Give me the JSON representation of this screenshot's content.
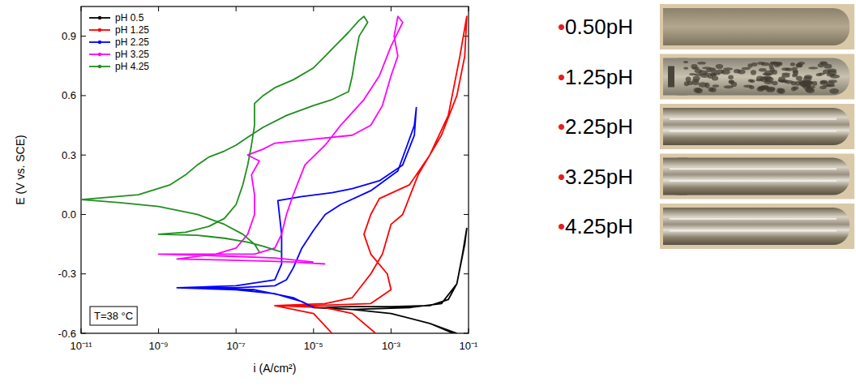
{
  "chart_data": {
    "type": "line",
    "xlabel": "i (A/cm²)",
    "ylabel": "E (V vs. SCE)",
    "log": "x",
    "legend": "upper left",
    "xlim": [
      1e-11,
      0.1
    ],
    "ylim": [
      -0.6,
      1.05
    ],
    "xticks": [
      {
        "value": 1e-11,
        "label": "10⁻¹¹"
      },
      {
        "value": 1e-09,
        "label": "10⁻⁹"
      },
      {
        "value": 1e-07,
        "label": "10⁻⁷"
      },
      {
        "value": 1e-05,
        "label": "10⁻⁵"
      },
      {
        "value": 0.001,
        "label": "10⁻³"
      },
      {
        "value": 0.1,
        "label": "10⁻¹"
      }
    ],
    "yticks": [
      -0.6,
      -0.3,
      {
        "value": 0,
        "label": "0.0"
      },
      0.3,
      0.6,
      0.9
    ],
    "annotations": [
      "T=38 °C"
    ],
    "series": [
      {
        "name": "pH 0.5",
        "color": "#000000",
        "line_style": "solid",
        "x": [
          0.04,
          0.01,
          0.001,
          0.0001,
          1e-05,
          0.0001,
          0.001,
          0.01,
          0.03,
          0.05,
          0.07,
          0.09,
          0.08,
          0.05,
          0.02,
          0.003,
          0.0001,
          0.001,
          0.01,
          0.05
        ],
        "values": [
          -0.6,
          -0.55,
          -0.5,
          -0.48,
          -0.47,
          -0.465,
          -0.465,
          -0.46,
          -0.43,
          -0.35,
          -0.2,
          -0.07,
          -0.15,
          -0.35,
          -0.45,
          -0.47,
          -0.48,
          -0.5,
          -0.55,
          -0.6
        ]
      },
      {
        "name": "pH 1.25",
        "color": "#ff0000",
        "line_style": "solid",
        "x": [
          0.0004,
          0.0001,
          2e-05,
          1e-06,
          2e-05,
          0.0001,
          0.0003,
          0.0006,
          0.001,
          0.002,
          0.005,
          0.02,
          0.05,
          0.08,
          0.09,
          0.06,
          0.03,
          0.01,
          0.003,
          0.0005,
          0.0003,
          0.0002,
          0.0003,
          0.0008,
          0.001,
          0.0003,
          1e-05,
          1e-06,
          1e-05,
          3e-05
        ],
        "values": [
          -0.6,
          -0.5,
          -0.47,
          -0.46,
          -0.45,
          -0.42,
          -0.3,
          -0.2,
          -0.05,
          0.0,
          0.2,
          0.4,
          0.6,
          0.8,
          1.0,
          0.8,
          0.5,
          0.3,
          0.15,
          0.08,
          0.0,
          -0.1,
          -0.2,
          -0.3,
          -0.38,
          -0.45,
          -0.46,
          -0.46,
          -0.5,
          -0.6
        ]
      },
      {
        "name": "pH 2.25",
        "color": "#0000ff",
        "line_style": "solid",
        "x": [
          1e-05,
          3e-06,
          3e-07,
          3e-09,
          1e-07,
          1e-06,
          1.5e-06,
          1.5e-06,
          1.2e-06,
          5e-06,
          3e-05,
          0.0001,
          0.0005,
          0.002,
          0.004,
          0.0045,
          0.004,
          0.0015,
          0.0003,
          5e-05,
          2e-05,
          1e-05,
          5e-06,
          3e-06,
          2e-06,
          1e-06,
          1e-07,
          3e-09,
          1e-07,
          1e-06,
          5e-06,
          1e-05
        ],
        "values": [
          -0.47,
          -0.42,
          -0.38,
          -0.37,
          -0.36,
          -0.33,
          -0.25,
          -0.1,
          0.07,
          0.09,
          0.11,
          0.13,
          0.17,
          0.25,
          0.4,
          0.54,
          0.45,
          0.22,
          0.12,
          0.05,
          0.0,
          -0.08,
          -0.17,
          -0.27,
          -0.33,
          -0.36,
          -0.37,
          -0.37,
          -0.38,
          -0.4,
          -0.44,
          -0.47
        ]
      },
      {
        "name": "pH 3.25",
        "color": "#ff00ff",
        "line_style": "solid",
        "x": [
          2e-05,
          3e-06,
          5e-07,
          5e-08,
          3e-09,
          3e-08,
          1e-07,
          2e-07,
          3e-07,
          3e-07,
          2.5e-07,
          4e-07,
          2e-07,
          5e-07,
          1e-06,
          1e-05,
          0.0001,
          0.0003,
          0.0006,
          0.001,
          0.0015,
          0.0012,
          0.0015,
          0.002,
          0.001,
          0.0005,
          0.0002,
          5e-05,
          2e-05,
          6e-06,
          3e-06,
          2e-06,
          1.5e-06,
          1e-06,
          3e-07,
          1e-08,
          1e-09,
          5e-08,
          1e-06,
          1e-05
        ],
        "values": [
          -0.25,
          -0.24,
          -0.235,
          -0.23,
          -0.225,
          -0.2,
          -0.17,
          -0.1,
          0.0,
          0.1,
          0.2,
          0.27,
          0.3,
          0.33,
          0.36,
          0.38,
          0.4,
          0.45,
          0.55,
          0.7,
          0.8,
          0.9,
          1.0,
          0.97,
          0.85,
          0.7,
          0.58,
          0.45,
          0.35,
          0.25,
          0.1,
          0.0,
          -0.1,
          -0.17,
          -0.2,
          -0.2,
          -0.2,
          -0.21,
          -0.22,
          -0.24
        ]
      },
      {
        "name": "pH 4.25",
        "color": "#1f8f1f",
        "line_style": "solid",
        "x": [
          1.5e-06,
          5e-07,
          2e-07,
          5e-08,
          1e-08,
          1e-09,
          5e-09,
          2e-08,
          5e-08,
          1e-07,
          1.5e-07,
          2e-07,
          2.5e-07,
          3e-07,
          3e-07,
          5e-07,
          1e-06,
          3e-06,
          1e-05,
          2e-05,
          4e-05,
          8e-05,
          0.00015,
          0.0002,
          0.00025,
          0.00015,
          0.00012,
          0.0001,
          8e-05,
          3e-05,
          1e-05,
          2e-06,
          5e-07,
          2e-07,
          1e-07,
          5e-08,
          2e-08,
          1e-08,
          5e-09,
          2e-09,
          3e-10,
          1e-11,
          1e-10,
          1e-09,
          1e-08,
          5e-08,
          1.5e-07,
          3e-07,
          4e-07
        ],
        "values": [
          -0.19,
          -0.16,
          -0.14,
          -0.12,
          -0.105,
          -0.1,
          -0.09,
          -0.06,
          -0.02,
          0.05,
          0.15,
          0.25,
          0.35,
          0.45,
          0.56,
          0.6,
          0.64,
          0.68,
          0.74,
          0.8,
          0.86,
          0.92,
          0.98,
          1.0,
          0.97,
          0.9,
          0.8,
          0.7,
          0.62,
          0.58,
          0.55,
          0.5,
          0.44,
          0.39,
          0.35,
          0.32,
          0.29,
          0.25,
          0.2,
          0.15,
          0.1,
          0.075,
          0.06,
          0.04,
          0.0,
          -0.05,
          -0.1,
          -0.15,
          -0.19
        ]
      }
    ]
  },
  "samples": {
    "labels": [
      "•0.50pH",
      "•1.25pH",
      "•2.25pH",
      "•3.25pH",
      "•4.25pH"
    ]
  }
}
